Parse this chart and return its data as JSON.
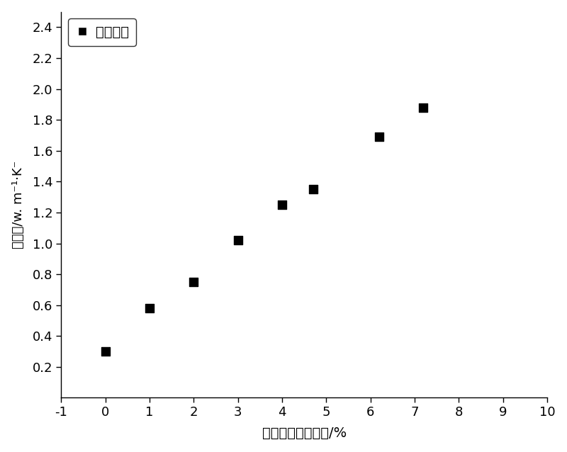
{
  "x_data": [
    0,
    1,
    2,
    3,
    4,
    4.7,
    6.2,
    7.2
  ],
  "y_data": [
    0.3,
    0.58,
    0.75,
    1.02,
    1.25,
    1.35,
    1.69,
    1.88
  ],
  "xlabel": "膨胀石墨的百分比/%",
  "ylabel": "热导率/w. m⁻¹·K⁻",
  "legend_label": "膨胀石墨",
  "xlim": [
    -1,
    10
  ],
  "ylim": [
    0,
    2.5
  ],
  "xticks": [
    -1,
    0,
    1,
    2,
    3,
    4,
    5,
    6,
    7,
    8,
    9,
    10
  ],
  "yticks": [
    0.2,
    0.4,
    0.6,
    0.8,
    1.0,
    1.2,
    1.4,
    1.6,
    1.8,
    2.0,
    2.2,
    2.4
  ],
  "marker_color": "#000000",
  "marker_size": 9,
  "background_color": "#ffffff",
  "fig_background": "#e8e8e8"
}
